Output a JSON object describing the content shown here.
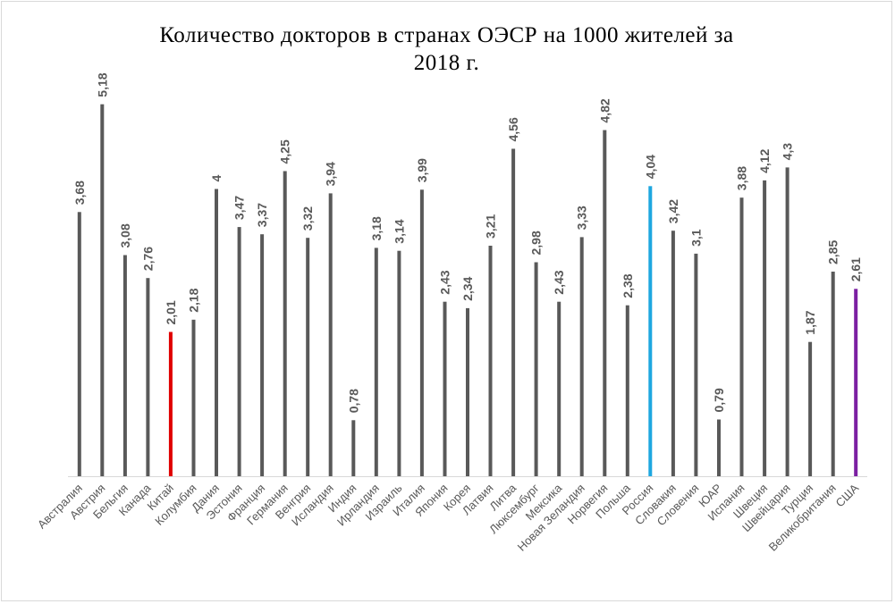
{
  "chart_data": {
    "type": "bar",
    "title": "Количество докторов в странах ОЭСР на 1000 жителей за 2018 г.",
    "title_lines": [
      "Количество докторов в странах ОЭСР на 1000 жителей за",
      "2018 г."
    ],
    "xlabel": "",
    "ylabel": "",
    "ylim": [
      0,
      5.5
    ],
    "grid": false,
    "categories": [
      "Австралия",
      "Австрия",
      "Бельгия",
      "Канада",
      "Китай",
      "Колумбия",
      "Дания",
      "Эстония",
      "Франция",
      "Германия",
      "Венгрия",
      "Исландия",
      "Индия",
      "Ирландия",
      "Израиль",
      "Италия",
      "Япония",
      "Корея",
      "Латвия",
      "Литва",
      "Люксембург",
      "Мексика",
      "Новая Зеландия",
      "Норвегия",
      "Польша",
      "Россия",
      "Словакия",
      "Словения",
      "ЮАР",
      "Испания",
      "Швеция",
      "Швейцария",
      "Турция",
      "Великобритания",
      "США"
    ],
    "values": [
      3.68,
      5.18,
      3.08,
      2.76,
      2.01,
      2.18,
      4,
      3.47,
      3.37,
      4.25,
      3.32,
      3.94,
      0.78,
      3.18,
      3.14,
      3.99,
      2.43,
      2.34,
      3.21,
      4.56,
      2.98,
      2.43,
      3.33,
      4.82,
      2.38,
      4.04,
      3.42,
      3.1,
      0.79,
      3.88,
      4.12,
      4.3,
      1.87,
      2.85,
      2.61
    ],
    "data_labels": [
      "3,68",
      "5,18",
      "3,08",
      "2,76",
      "2,01",
      "2,18",
      "4",
      "3,47",
      "3,37",
      "4,25",
      "3,32",
      "3,94",
      "0,78",
      "3,18",
      "3,14",
      "3,99",
      "2,43",
      "2,34",
      "3,21",
      "4,56",
      "2,98",
      "2,43",
      "3,33",
      "4,82",
      "2,38",
      "4,04",
      "3,42",
      "3,1",
      "0,79",
      "3,88",
      "4,12",
      "4,3",
      "1,87",
      "2,85",
      "2,61"
    ],
    "colors": {
      "default": "#595959",
      "highlights": {
        "Китай": "#e00000",
        "Россия": "#1ea7e0",
        "США": "#7b1fa2"
      },
      "label_text": "#595959",
      "category_text": "#595959",
      "axis": "#d9d9d9"
    }
  }
}
